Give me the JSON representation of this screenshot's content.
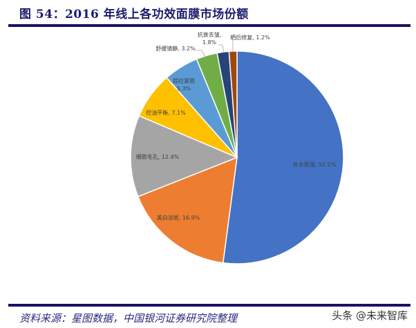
{
  "header": {
    "title": "图 54：2016 年线上各功效面膜市场份额"
  },
  "footer": {
    "source": "资料来源：星图数据，中国银河证券研究院整理",
    "watermark": "头条 @未来智库"
  },
  "chart_data": {
    "type": "pie",
    "title": "2016 年线上各功效面膜市场份额",
    "start_angle_deg": 0,
    "direction": "clockwise",
    "categories": [
      "补水保湿",
      "美白淡斑",
      "细致毛孔",
      "控油平衡",
      "提拉紧致",
      "舒缓镇静",
      "抗衰去皱",
      "晒后修复"
    ],
    "values": [
      52.1,
      16.9,
      12.4,
      7.1,
      5.3,
      3.2,
      1.8,
      1.2
    ],
    "unit": "%",
    "colors": [
      "#4472c4",
      "#ed7d31",
      "#a5a5a5",
      "#ffc000",
      "#5b9bd5",
      "#70ad47",
      "#264478",
      "#9e480e"
    ],
    "labels": [
      "补水保湿, 52.1%",
      "美白淡斑, 16.9%",
      "细致毛孔, 12.4%",
      "控油平衡, 7.1%",
      "提拉紧致, 5.3%",
      "舒缓镇静, 3.2%",
      "抗衰去皱, 1.8%",
      "晒后修复, 1.2%"
    ],
    "legend": "none (data labels on slices)"
  }
}
